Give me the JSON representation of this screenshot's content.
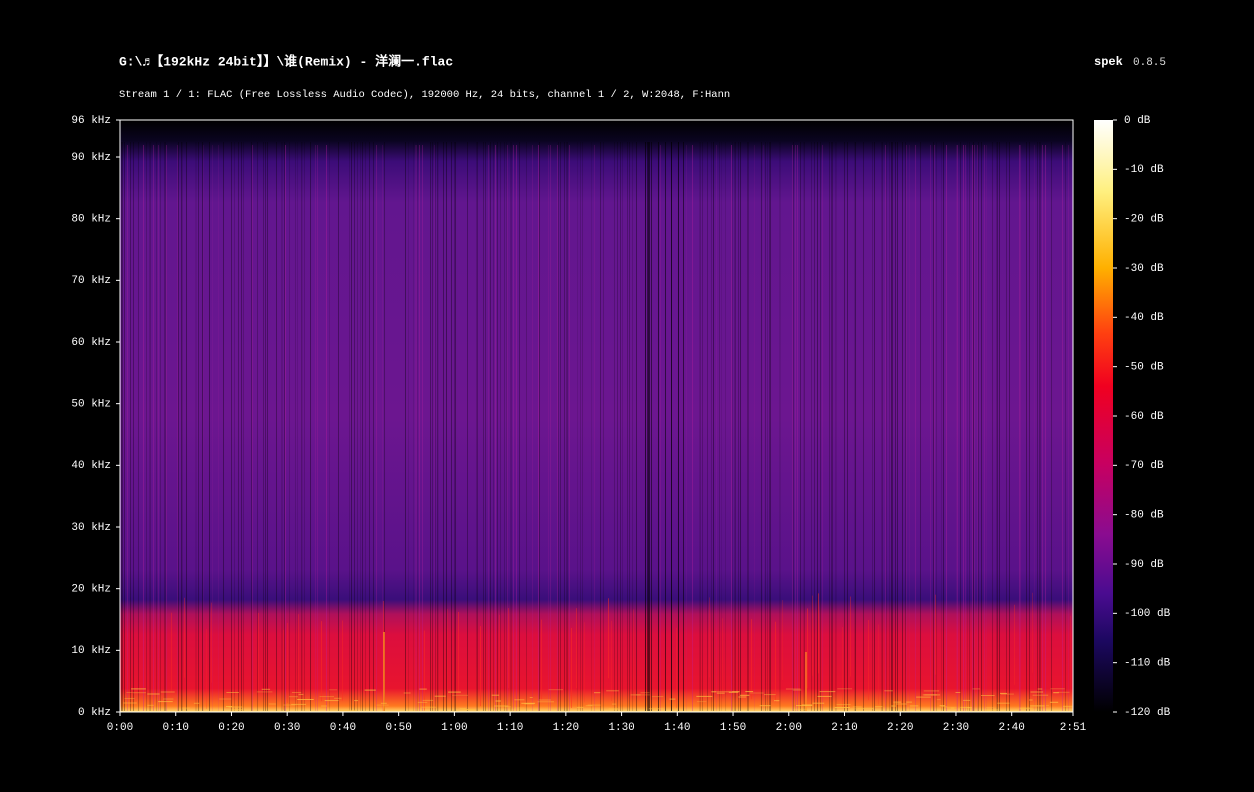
{
  "header": {
    "title": "G:\\♬【192kHz 24bit】】\\谁(Remix) - 洋澜一.flac",
    "app_name": "spek",
    "app_version": "0.8.5",
    "subtitle": "Stream 1 / 1: FLAC (Free Lossless Audio Codec), 192000 Hz, 24 bits, channel 1 / 2, W:2048, F:Hann"
  },
  "frequency_axis": {
    "labels": [
      "96 kHz",
      "90 kHz",
      "80 kHz",
      "70 kHz",
      "60 kHz",
      "50 kHz",
      "40 kHz",
      "30 kHz",
      "20 kHz",
      "10 kHz",
      "0 kHz"
    ]
  },
  "time_axis": {
    "labels": [
      "0:00",
      "0:10",
      "0:20",
      "0:30",
      "0:40",
      "0:50",
      "1:00",
      "1:10",
      "1:20",
      "1:30",
      "1:40",
      "1:50",
      "2:00",
      "2:10",
      "2:20",
      "2:30",
      "2:40",
      "2:51"
    ]
  },
  "level_scale": {
    "labels": [
      "0 dB",
      "-10 dB",
      "-20 dB",
      "-30 dB",
      "-40 dB",
      "-50 dB",
      "-60 dB",
      "-70 dB",
      "-80 dB",
      "-90 dB",
      "-100 dB",
      "-110 dB",
      "-120 dB"
    ]
  }
}
